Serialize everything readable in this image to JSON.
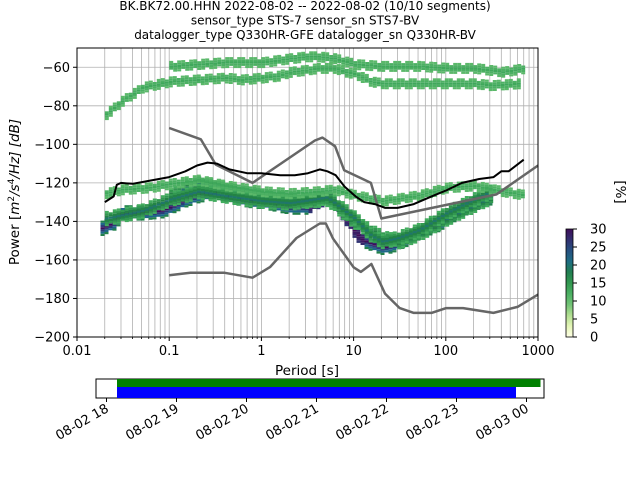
{
  "chart_data": {
    "type": "heatmap",
    "title": [
      "BK.BK72.00.HHN   2022-08-02 -- 2022-08-02  (10/10 segments)",
      "sensor_type STS-7 sensor_sn STS7-BV",
      "datalogger_type Q330HR-GFE datalogger_sn Q330HR-BV"
    ],
    "xlabel": "Period [s]",
    "ylabel": "Power [m²/s⁴/Hz] [dB]",
    "ylabel_parts": {
      "main": "Power [",
      "m": "m",
      "e2": "2",
      "s": "/s",
      "e4": "4",
      "hz": "/Hz] [dB]"
    },
    "x_scale": "log",
    "xlim": [
      0.01,
      1000
    ],
    "ylim": [
      -200,
      -50
    ],
    "grid": true,
    "x_ticks": [
      "0.01",
      "0.1",
      "1",
      "10",
      "100",
      "1000"
    ],
    "y_ticks": [
      "−200",
      "−180",
      "−160",
      "−140",
      "−120",
      "−100",
      "−80",
      "−60"
    ],
    "colorbar": {
      "label": "[%]",
      "range": [
        0,
        30
      ],
      "ticks": [
        "0",
        "5",
        "10",
        "15",
        "20",
        "25",
        "30"
      ],
      "colors": [
        "#ffffe5",
        "#d9f0a3",
        "#78c679",
        "#41ab5d",
        "#238443",
        "#1d6a8a",
        "#2c3e7a",
        "#3f0e5a"
      ]
    },
    "series": [
      {
        "name": "NLNM",
        "color": "#666666",
        "x": [
          0.1,
          0.17,
          0.4,
          0.8,
          1.24,
          2.4,
          4.3,
          5.0,
          6.0,
          10.0,
          12.0,
          15.6,
          21.9,
          31.6,
          45.0,
          70.0,
          101.0,
          154.0,
          328.0,
          600.0,
          1000.0
        ],
        "y": [
          -168,
          -166.7,
          -166.7,
          -169.2,
          -163.7,
          -148.6,
          -141.1,
          -141.1,
          -149.0,
          -163.8,
          -166.2,
          -162.1,
          -177.5,
          -185.0,
          -187.5,
          -187.5,
          -185.0,
          -185.0,
          -187.5,
          -184.4,
          -178.0
        ]
      },
      {
        "name": "NHNM",
        "color": "#666666",
        "x": [
          0.1,
          0.22,
          0.32,
          0.8,
          3.8,
          4.6,
          6.3,
          7.9,
          15.4,
          20.0,
          354.8,
          1000.0
        ],
        "y": [
          -91.5,
          -97.4,
          -110.5,
          -120.0,
          -98.0,
          -96.5,
          -101.0,
          -113.5,
          -120.0,
          -138.5,
          -126.0,
          -111.0
        ]
      },
      {
        "name": "max",
        "color": "#000000",
        "x": [
          0.02,
          0.025,
          0.027,
          0.03,
          0.04,
          0.06,
          0.1,
          0.15,
          0.2,
          0.26,
          0.33,
          0.45,
          0.7,
          1.0,
          1.6,
          2.3,
          3.2,
          4.3,
          5.2,
          6.4,
          8.0,
          10.5,
          13.0,
          17.0,
          22.0,
          30.0,
          45.0,
          70.0,
          100.0,
          150.0,
          230.0,
          330.0,
          400.0,
          480.0,
          700.0
        ],
        "y": [
          -130,
          -127,
          -121,
          -120,
          -120.5,
          -119,
          -117,
          -114,
          -111,
          -109.5,
          -110,
          -113,
          -115,
          -115,
          -116,
          -116,
          -115,
          -113,
          -114,
          -116,
          -122,
          -127,
          -130,
          -131,
          -133,
          -133,
          -131,
          -127,
          -124,
          -120,
          -118,
          -117,
          -114,
          -114,
          -108
        ]
      }
    ],
    "heatmap_bands": [
      {
        "x": [
          0.018,
          0.025,
          0.03,
          0.05,
          0.08,
          0.1,
          0.15,
          0.2,
          0.3,
          0.5,
          0.8,
          1.0,
          1.5,
          2.0,
          3.0,
          4.0,
          5.0,
          6.0,
          7.0,
          8.0,
          9.0,
          10.0,
          12.0,
          15.0,
          20.0,
          25.0,
          35.0,
          50.0,
          80.0,
          100.0,
          150.0,
          200.0,
          300.0
        ],
        "y": [
          -143,
          -140,
          -135,
          -135,
          -134,
          -132,
          -128,
          -126,
          -124,
          -127,
          -129,
          -129,
          -131,
          -132,
          -132,
          -129,
          -127,
          -129,
          -134,
          -138,
          -141,
          -145,
          -149,
          -151,
          -153,
          -152,
          -149,
          -145,
          -141,
          -138,
          -133,
          -130,
          -127
        ]
      },
      {
        "x": [
          0.1,
          0.15,
          0.2,
          0.3,
          0.5,
          0.8,
          1.0,
          2.0,
          3.0,
          5.0,
          10.0,
          20.0,
          30.0,
          50.0,
          100.0,
          200.0,
          300.0
        ],
        "y": [
          -126,
          -122,
          -120,
          -121,
          -124,
          -126,
          -127,
          -128,
          -129,
          -128,
          -140,
          -148,
          -150,
          -146,
          -138,
          -131,
          -127
        ]
      },
      {
        "x": [
          0.02,
          0.05,
          0.1,
          0.2,
          0.5,
          1.0,
          2.0,
          5.0,
          10.0,
          15.0,
          20.0,
          30.0,
          50.0,
          100.0,
          200.0,
          300.0
        ],
        "y": [
          -138,
          -134,
          -128,
          -124,
          -127,
          -129,
          -130,
          -127,
          -138,
          -147,
          -150,
          -148,
          -144,
          -135,
          -128,
          -124
        ]
      },
      {
        "x": [
          0.02,
          0.03,
          0.05,
          0.1,
          0.2,
          0.4,
          0.6,
          1.0,
          1.5,
          2.0,
          3.0,
          4.0,
          6.0,
          8.0,
          10.0,
          15.0,
          20.0,
          30.0,
          50.0,
          100.0,
          200.0,
          300.0,
          600.0
        ],
        "y": [
          -84,
          -77,
          -70,
          -67,
          -66,
          -65,
          -66,
          -65,
          -64,
          -62,
          -61,
          -60,
          -60,
          -62,
          -63,
          -67,
          -68,
          -68,
          -68,
          -68,
          -68,
          -69,
          -68
        ]
      },
      {
        "x": [
          0.1,
          0.2,
          0.4,
          0.6,
          1.0,
          2.0,
          3.0,
          4.0,
          6.0,
          10.0,
          20.0,
          50.0,
          100.0,
          200.0,
          400.0,
          700.0
        ],
        "y": [
          -59,
          -58,
          -57,
          -57,
          -57,
          -55,
          -54,
          -54,
          -55,
          -58,
          -59,
          -59,
          -60,
          -60,
          -62,
          -60
        ]
      },
      {
        "x": [
          0.02,
          0.03,
          0.06,
          0.1,
          0.2,
          0.4,
          1.0,
          2.0,
          4.0,
          6.0,
          10.0,
          20.0,
          50.0,
          100.0,
          200.0,
          400.0,
          700.0
        ],
        "y": [
          -125,
          -123,
          -122,
          -120,
          -118,
          -121,
          -124,
          -125,
          -124,
          -123,
          -126,
          -129,
          -126,
          -122,
          -121,
          -124,
          -126
        ]
      }
    ],
    "availability": {
      "tick_labels": [
        "08-02 18",
        "08-02 19",
        "08-02 20",
        "08-02 21",
        "08-02 22",
        "08-02 23",
        "08-03 00"
      ],
      "range_hours": [
        17.85,
        24.25
      ],
      "data_span_hours": [
        18.15,
        23.85
      ],
      "gap_span_hours": [
        18.15,
        24.2
      ],
      "colors": {
        "data": "#0000ff",
        "gaps": "#008000"
      }
    }
  }
}
